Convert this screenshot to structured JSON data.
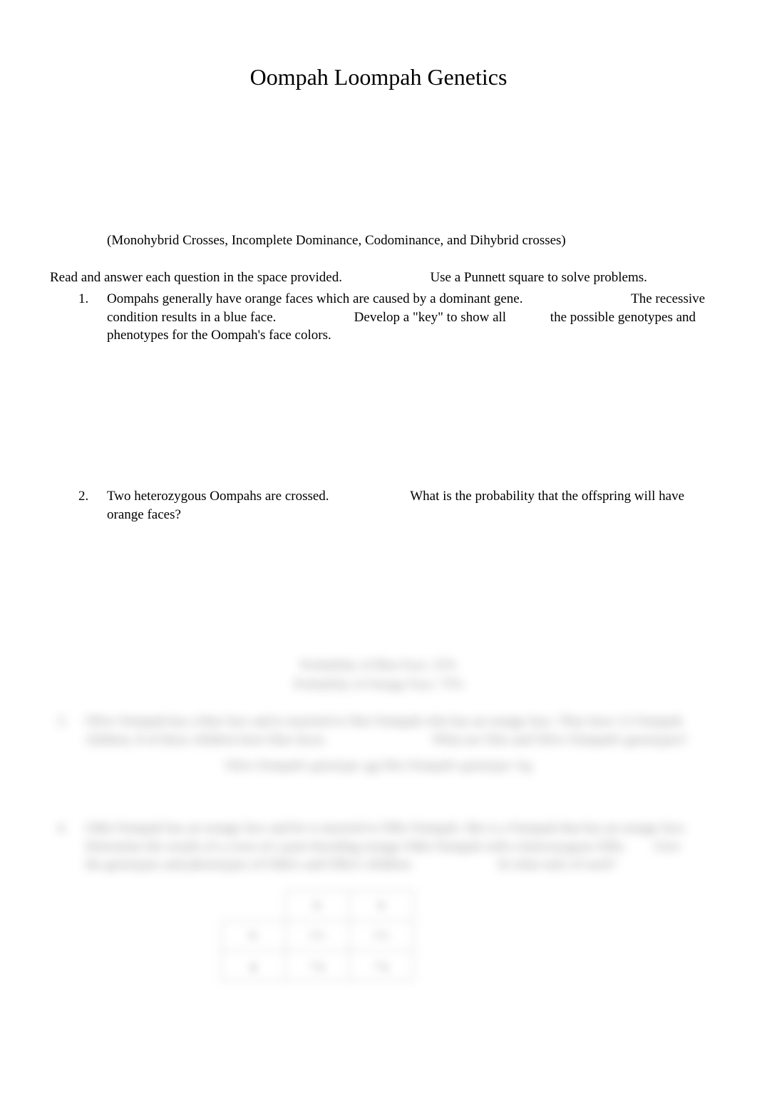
{
  "document": {
    "title": "Oompah Loompah Genetics",
    "subtitle": "(Monohybrid Crosses, Incomplete Dominance, Codominance, and Dihybrid crosses)",
    "instructions": "Read and answer each question in the space provided.                          Use a Punnett square to solve problems.",
    "questions": [
      {
        "number": "1.",
        "text": "Oompahs generally have orange faces which are caused by a dominant gene.                                The recessive condition results in a blue face.                       Develop a \"key\" to show all             the possible genotypes and phenotypes for the Oompah's face colors."
      },
      {
        "number": "2.",
        "text": "Two heterozygous Oompahs are crossed.                        What is the probability that the offspring will have orange faces?"
      }
    ],
    "blurred": {
      "prob_line1": "Probability of Blue Face: 25%",
      "prob_line2": "Probability of Orange Face: 75%",
      "q3_number": "3.",
      "q3_text": "Olive Oompah has a blue face and is married to Otto Oompah who has an orange face. They have 12 Oompah children, 8 of these children have blue faces.                               What are Otto and Olive Oompah's genotypes?",
      "q3_ans": "Olive Oompah's genotype: gg              Otto Oompah's genotype: Gg",
      "q4_number": "4.",
      "q4_text": "Odin Oompah has an orange face and he is married to Ollie Oompah. She is a Oompah that has an orange face.        Determine the results of a cross of a pure-breeding orange Odin Oompah with a heterozygous Ollie.        Give the genotypes and phenotypes of Odin's and Ollie's children.                         In what ratio of each?",
      "table": {
        "col_headers": [
          "G",
          "G"
        ],
        "row_headers": [
          "G",
          "g"
        ],
        "cells": [
          [
            "GG",
            "GG"
          ],
          [
            "Gg",
            "Gg"
          ]
        ]
      }
    },
    "colors": {
      "background": "#ffffff",
      "text": "#000000",
      "blur_text": "#333333"
    },
    "typography": {
      "title_fontsize": 32,
      "body_fontsize": 19,
      "font_family": "Times New Roman"
    }
  }
}
